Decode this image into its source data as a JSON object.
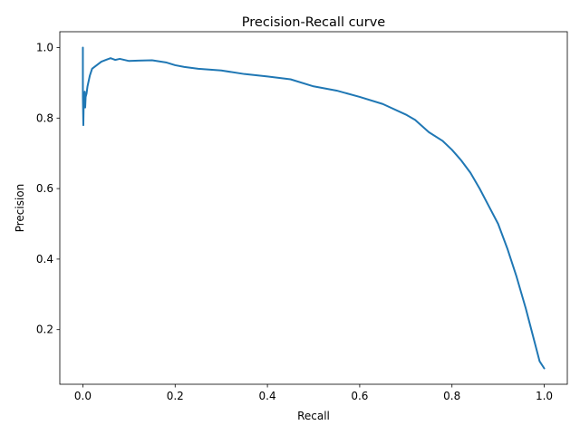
{
  "chart_data": {
    "type": "line",
    "title": "Precision-Recall curve",
    "xlabel": "Recall",
    "ylabel": "Precision",
    "xlim": [
      -0.05,
      1.05
    ],
    "ylim": [
      0.045,
      1.045
    ],
    "xticks": [
      0.0,
      0.2,
      0.4,
      0.6,
      0.8,
      1.0
    ],
    "xtick_labels": [
      "0.0",
      "0.2",
      "0.4",
      "0.6",
      "0.8",
      "1.0"
    ],
    "yticks": [
      0.2,
      0.4,
      0.6,
      0.8,
      1.0
    ],
    "ytick_labels": [
      "0.2",
      "0.4",
      "0.6",
      "0.8",
      "1.0"
    ],
    "grid": false,
    "legend": "none",
    "series": [
      {
        "color": "#1f77b4",
        "x": [
          0.0,
          0.0,
          0.001,
          0.002,
          0.003,
          0.004,
          0.005,
          0.006,
          0.008,
          0.01,
          0.015,
          0.02,
          0.03,
          0.04,
          0.05,
          0.06,
          0.07,
          0.08,
          0.1,
          0.12,
          0.15,
          0.18,
          0.2,
          0.22,
          0.25,
          0.3,
          0.35,
          0.4,
          0.45,
          0.5,
          0.55,
          0.6,
          0.65,
          0.7,
          0.72,
          0.75,
          0.78,
          0.8,
          0.82,
          0.84,
          0.86,
          0.88,
          0.9,
          0.92,
          0.94,
          0.96,
          0.97,
          0.98,
          0.99,
          1.0
        ],
        "y": [
          1.0,
          0.86,
          0.78,
          0.86,
          0.84,
          0.875,
          0.83,
          0.86,
          0.87,
          0.89,
          0.92,
          0.94,
          0.95,
          0.96,
          0.965,
          0.97,
          0.965,
          0.968,
          0.962,
          0.963,
          0.964,
          0.958,
          0.95,
          0.945,
          0.94,
          0.935,
          0.925,
          0.918,
          0.91,
          0.89,
          0.878,
          0.86,
          0.84,
          0.81,
          0.795,
          0.76,
          0.735,
          0.71,
          0.68,
          0.645,
          0.6,
          0.55,
          0.5,
          0.43,
          0.35,
          0.26,
          0.21,
          0.16,
          0.11,
          0.09
        ]
      }
    ]
  }
}
